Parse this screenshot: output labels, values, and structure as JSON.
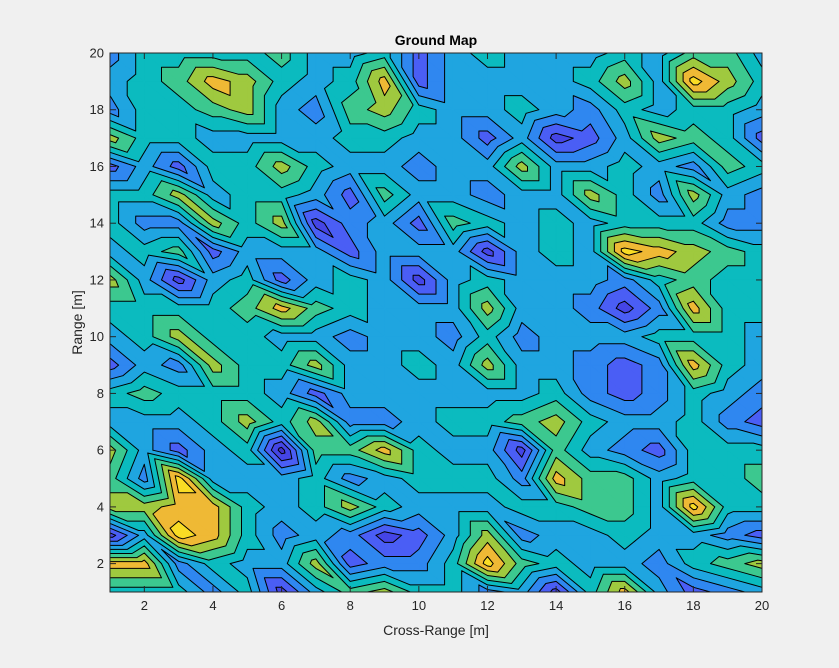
{
  "chart_data": {
    "type": "contourf",
    "title": "Ground Map",
    "xlabel": "Cross-Range [m]",
    "ylabel": "Range [m]",
    "xlim": [
      1,
      20
    ],
    "ylim": [
      1,
      20
    ],
    "xticks": [
      2,
      4,
      6,
      8,
      10,
      12,
      14,
      16,
      18,
      20
    ],
    "yticks": [
      2,
      4,
      6,
      8,
      10,
      12,
      14,
      16,
      18,
      20
    ],
    "x": [
      1,
      2,
      3,
      4,
      5,
      6,
      7,
      8,
      9,
      10,
      11,
      12,
      13,
      14,
      15,
      16,
      17,
      18,
      19,
      20
    ],
    "y_top_to_bottom": [
      20,
      19,
      18,
      17,
      16,
      15,
      14,
      13,
      12,
      11,
      10,
      9,
      8,
      7,
      6,
      5,
      4,
      3,
      2,
      1
    ],
    "z_top_to_bottom": [
      [
        3,
        5,
        5,
        5,
        5,
        6,
        4,
        4,
        5,
        2,
        4,
        5,
        4,
        4,
        4,
        5,
        4,
        6,
        6,
        4
      ],
      [
        4,
        5,
        6,
        8,
        7,
        5,
        4,
        5,
        8,
        2,
        4,
        4,
        4,
        4,
        5,
        7,
        4,
        9,
        7,
        5
      ],
      [
        3,
        5,
        5,
        6,
        7,
        4,
        3,
        6,
        7,
        5,
        4,
        4,
        5,
        4,
        3,
        5,
        4,
        5,
        5,
        4
      ],
      [
        7,
        5,
        5,
        4,
        4,
        4,
        4,
        5,
        5,
        4,
        4,
        2,
        4,
        1,
        2,
        4,
        7,
        6,
        5,
        2
      ],
      [
        2,
        4,
        2,
        5,
        5,
        7,
        5,
        4,
        4,
        3,
        4,
        4,
        7,
        4,
        4,
        5,
        4,
        3,
        6,
        5
      ],
      [
        5,
        5,
        7,
        4,
        5,
        5,
        4,
        2,
        6,
        4,
        4,
        3,
        4,
        4,
        7,
        5,
        3,
        7,
        4,
        3
      ],
      [
        5,
        3,
        3,
        7,
        5,
        7,
        1,
        3,
        4,
        2,
        6,
        5,
        4,
        5,
        4,
        5,
        5,
        5,
        3,
        3
      ],
      [
        4,
        5,
        6,
        2,
        4,
        4,
        4,
        2,
        4,
        4,
        4,
        1,
        4,
        5,
        4,
        9,
        8,
        7,
        6,
        5
      ],
      [
        7,
        4,
        1,
        4,
        5,
        2,
        4,
        5,
        4,
        1,
        4,
        5,
        4,
        4,
        4,
        3,
        5,
        6,
        5,
        5
      ],
      [
        5,
        5,
        5,
        5,
        6,
        8,
        6,
        5,
        4,
        4,
        4,
        7,
        4,
        4,
        3,
        1,
        3,
        8,
        5,
        5
      ],
      [
        4,
        5,
        7,
        5,
        5,
        4,
        4,
        3,
        4,
        4,
        3,
        5,
        3,
        4,
        4,
        4,
        5,
        5,
        5,
        4
      ],
      [
        2,
        4,
        3,
        7,
        5,
        5,
        7,
        4,
        4,
        5,
        4,
        7,
        4,
        4,
        3,
        2,
        3,
        8,
        5,
        4
      ],
      [
        5,
        6,
        5,
        5,
        5,
        4,
        2,
        4,
        4,
        4,
        4,
        4,
        4,
        5,
        3,
        2,
        3,
        5,
        4,
        3
      ],
      [
        4,
        4,
        4,
        5,
        7,
        5,
        7,
        3,
        3,
        4,
        5,
        5,
        6,
        7,
        5,
        4,
        4,
        5,
        3,
        2
      ],
      [
        7,
        4,
        2,
        4,
        5,
        0,
        6,
        6,
        8,
        5,
        4,
        4,
        1,
        6,
        4,
        3,
        2,
        5,
        5,
        5
      ],
      [
        6,
        3,
        9,
        4,
        4,
        4,
        5,
        3,
        4,
        5,
        5,
        5,
        3,
        8,
        6,
        6,
        4,
        5,
        5,
        6
      ],
      [
        7,
        7,
        8,
        8,
        5,
        4,
        5,
        7,
        5,
        4,
        4,
        4,
        5,
        5,
        6,
        6,
        4,
        9,
        5,
        5
      ],
      [
        1,
        4,
        9,
        8,
        5,
        3,
        4,
        3,
        1,
        2,
        4,
        7,
        3,
        4,
        4,
        5,
        4,
        4,
        3,
        2
      ],
      [
        8,
        8,
        3,
        5,
        4,
        4,
        7,
        2,
        3,
        3,
        5,
        9,
        6,
        5,
        4,
        4,
        3,
        5,
        6,
        7
      ],
      [
        5,
        5,
        5,
        3,
        5,
        1,
        4,
        6,
        7,
        5,
        5,
        3,
        4,
        1,
        5,
        8,
        4,
        2,
        3,
        4
      ]
    ],
    "levels": [
      0.5,
      1.5,
      2.5,
      3.5,
      4.5,
      5.5,
      6.5,
      7.5,
      8.5
    ],
    "colormap": [
      "#4332c9",
      "#4545e6",
      "#4a5ef5",
      "#2f87f0",
      "#1fa5e0",
      "#0bbbbf",
      "#3cc88f",
      "#9fc93f",
      "#efb935",
      "#f9dc24"
    ],
    "grid": false
  }
}
